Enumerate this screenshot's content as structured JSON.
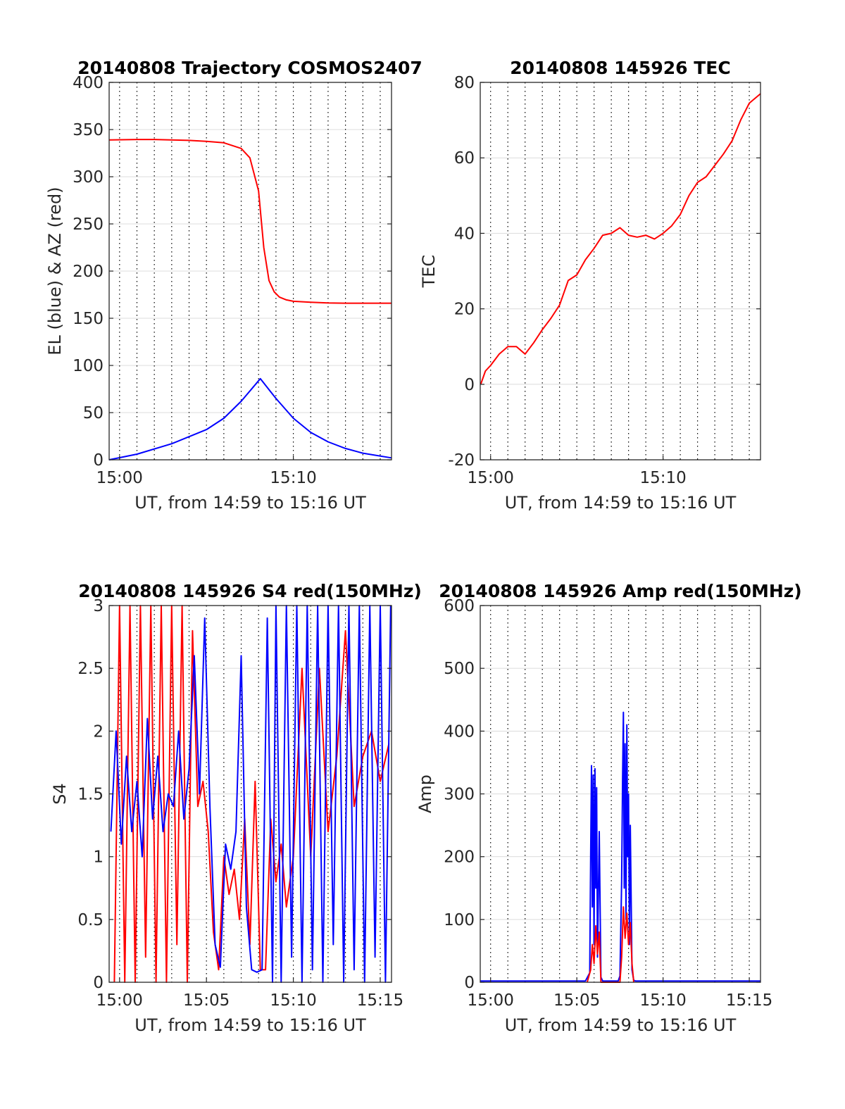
{
  "colors": {
    "el": "#0000ff",
    "az": "#ff0000",
    "series": "#ff0000",
    "grid": "#dcdcdc",
    "vgrid": "#000000"
  },
  "chart_data": [
    {
      "id": "traj",
      "type": "line",
      "title": "20140808 Trajectory COSMOS2407",
      "xlabel": "UT, from 14:59 to 15:16 UT",
      "ylabel": "EL (blue) & AZ (red)",
      "xlim": [
        -0.6,
        15.65
      ],
      "ylim": [
        0,
        400
      ],
      "xtick_values": [
        0,
        10
      ],
      "xtick_labels": [
        "15:00",
        "15:10"
      ],
      "yticks": [
        0,
        50,
        100,
        150,
        200,
        250,
        300,
        350,
        400
      ],
      "grid": "horizontal solid, vertical dotted",
      "series": [
        {
          "color": "az",
          "x": [
            -0.6,
            1,
            2,
            3,
            4,
            5,
            6,
            7,
            7.5,
            8.0,
            8.3,
            8.6,
            8.9,
            9.2,
            9.6,
            10,
            11,
            12,
            13,
            15.65
          ],
          "y": [
            339,
            339.5,
            339.5,
            339,
            338.5,
            337.5,
            336,
            330,
            320,
            285,
            225,
            190,
            178,
            172.5,
            169.5,
            168,
            167,
            166.2,
            166,
            166
          ]
        },
        {
          "color": "el",
          "x": [
            -0.6,
            1,
            3,
            5,
            6,
            7,
            8.1,
            9,
            10,
            11,
            12,
            13,
            14,
            15.65
          ],
          "y": [
            0,
            6,
            17,
            32,
            44,
            62,
            86,
            65,
            44,
            29,
            19,
            12,
            7,
            2
          ]
        }
      ]
    },
    {
      "id": "tec",
      "type": "line",
      "title": "20140808 145926 TEC",
      "xlabel": "UT, from 14:59 to 15:16 UT",
      "ylabel": "TEC",
      "xlim": [
        -0.6,
        15.65
      ],
      "ylim": [
        -20,
        80
      ],
      "xtick_values": [
        0,
        10
      ],
      "xtick_labels": [
        "15:00",
        "15:10"
      ],
      "yticks": [
        -20,
        0,
        20,
        40,
        60,
        80
      ],
      "grid": "horizontal solid, vertical dotted",
      "series": [
        {
          "color": "series",
          "x": [
            -0.57,
            -0.3,
            0,
            0.5,
            1,
            1.5,
            2,
            2.5,
            3,
            3.5,
            4,
            4.5,
            5,
            5.5,
            6,
            6.5,
            7,
            7.5,
            8,
            8.5,
            9,
            9.5,
            10,
            10.5,
            11,
            11.5,
            12,
            12.5,
            13,
            13.5,
            14,
            14.5,
            15,
            15.65
          ],
          "y": [
            0,
            3.5,
            5,
            8,
            10,
            10,
            8,
            11,
            14.5,
            17.5,
            21,
            27.5,
            29,
            33,
            36,
            39.5,
            40,
            41.5,
            39.5,
            39,
            39.5,
            38.5,
            40,
            42,
            45,
            50,
            53.5,
            55,
            58,
            61,
            64.5,
            70,
            74.5,
            77
          ]
        }
      ]
    },
    {
      "id": "s4",
      "type": "line",
      "title": "20140808 145926 S4 red(150MHz)",
      "xlabel": "UT, from 14:59 to 15:16 UT",
      "ylabel": "S4",
      "xlim": [
        -0.6,
        15.65
      ],
      "ylim": [
        0,
        3
      ],
      "xtick_values": [
        0,
        5,
        10,
        15
      ],
      "xtick_labels": [
        "15:00",
        "15:05",
        "15:10",
        "15:15"
      ],
      "yticks": [
        0,
        0.5,
        1,
        1.5,
        2,
        2.5,
        3
      ],
      "yticklabels": [
        "0",
        "0.5",
        "1",
        "1.5",
        "2",
        "2.5",
        "3"
      ],
      "grid": "horizontal solid, vertical dotted",
      "series": [
        {
          "color": "az",
          "x": [
            -0.3,
            0.0,
            0.3,
            0.6,
            0.9,
            1.2,
            1.5,
            1.8,
            2.1,
            2.4,
            2.7,
            3.0,
            3.3,
            3.6,
            3.9,
            4.2,
            4.5,
            4.8,
            5.1,
            5.4,
            5.7,
            6.0,
            6.3,
            6.6,
            6.9,
            7.2,
            7.5,
            7.8,
            8.1,
            8.4,
            8.7,
            9.0,
            9.3,
            9.6,
            10.0,
            10.5,
            11.0,
            11.5,
            12.0,
            12.5,
            13.0,
            13.5,
            14.0,
            14.5,
            15.0,
            15.5
          ],
          "y": [
            0,
            3,
            0,
            3,
            0,
            3,
            0.2,
            3,
            0,
            3,
            0,
            3,
            0.3,
            3,
            0,
            2.8,
            1.4,
            1.6,
            1.2,
            0.4,
            0.1,
            1.0,
            0.7,
            0.9,
            0.5,
            1.3,
            0.3,
            1.6,
            0.1,
            0.1,
            1.3,
            0.8,
            1.1,
            0.6,
            1.0,
            2.5,
            1.0,
            2.5,
            1.2,
            1.8,
            2.8,
            1.4,
            1.8,
            2.0,
            1.6,
            1.9
          ]
        },
        {
          "color": "el",
          "x": [
            -0.5,
            -0.2,
            0.1,
            0.4,
            0.7,
            1.0,
            1.3,
            1.6,
            1.9,
            2.2,
            2.5,
            2.8,
            3.1,
            3.4,
            3.7,
            4.0,
            4.3,
            4.6,
            4.9,
            5.2,
            5.5,
            5.8,
            6.1,
            6.4,
            6.7,
            7.0,
            7.3,
            7.6,
            7.9,
            8.2,
            8.5,
            8.8,
            9.0,
            9.3,
            9.6,
            9.9,
            10.2,
            10.5,
            10.8,
            11.1,
            11.4,
            11.7,
            12.0,
            12.3,
            12.6,
            12.9,
            13.2,
            13.5,
            13.8,
            14.1,
            14.4,
            14.7,
            15.0,
            15.3,
            15.6
          ],
          "y": [
            1.2,
            2.0,
            1.1,
            1.8,
            1.2,
            1.6,
            1.0,
            2.1,
            1.3,
            1.8,
            1.2,
            1.5,
            1.4,
            2.0,
            1.3,
            1.7,
            2.6,
            1.5,
            2.9,
            1.4,
            0.3,
            0.12,
            1.1,
            0.9,
            1.2,
            2.6,
            0.6,
            0.1,
            0.08,
            0.1,
            2.9,
            0.0,
            3.0,
            0.0,
            3.0,
            0.2,
            3.0,
            0.0,
            3.0,
            0.1,
            3.0,
            0.0,
            3.0,
            0.3,
            3.0,
            0.0,
            3.0,
            0.1,
            3.0,
            0.0,
            3.0,
            0.2,
            3.0,
            0.0,
            3.0
          ]
        }
      ]
    },
    {
      "id": "amp",
      "type": "line",
      "title": "20140808 145926 Amp red(150MHz)",
      "xlabel": "UT, from 14:59 to 15:16 UT",
      "ylabel": "Amp",
      "xlim": [
        -0.6,
        15.65
      ],
      "ylim": [
        0,
        600
      ],
      "xtick_values": [
        0,
        5,
        10,
        15
      ],
      "xtick_labels": [
        "15:00",
        "15:05",
        "15:10",
        "15:15"
      ],
      "yticks": [
        0,
        100,
        200,
        300,
        400,
        500,
        600
      ],
      "grid": "horizontal solid, vertical dotted",
      "series": [
        {
          "color": "el",
          "x": [
            -0.6,
            5.5,
            5.75,
            5.8,
            5.85,
            5.9,
            5.95,
            6.0,
            6.05,
            6.1,
            6.15,
            6.2,
            6.3,
            6.4,
            6.5,
            7.4,
            7.5,
            7.6,
            7.65,
            7.7,
            7.75,
            7.8,
            7.85,
            7.9,
            7.95,
            8.0,
            8.05,
            8.1,
            8.2,
            8.3,
            8.4,
            15.65
          ],
          "y": [
            2,
            2,
            15,
            200,
            345,
            120,
            330,
            60,
            340,
            150,
            310,
            40,
            240,
            8,
            2,
            2,
            10,
            160,
            320,
            430,
            150,
            380,
            100,
            410,
            200,
            300,
            60,
            250,
            20,
            3,
            2,
            2
          ]
        },
        {
          "color": "series",
          "x": [
            5.6,
            5.8,
            5.9,
            6.0,
            6.1,
            6.2,
            6.3,
            6.4,
            7.5,
            7.6,
            7.7,
            7.8,
            7.9,
            8.0,
            8.1,
            8.2,
            8.3
          ],
          "y": [
            0,
            20,
            60,
            30,
            90,
            45,
            80,
            0,
            0,
            40,
            120,
            70,
            110,
            60,
            95,
            30,
            0
          ]
        }
      ]
    }
  ]
}
